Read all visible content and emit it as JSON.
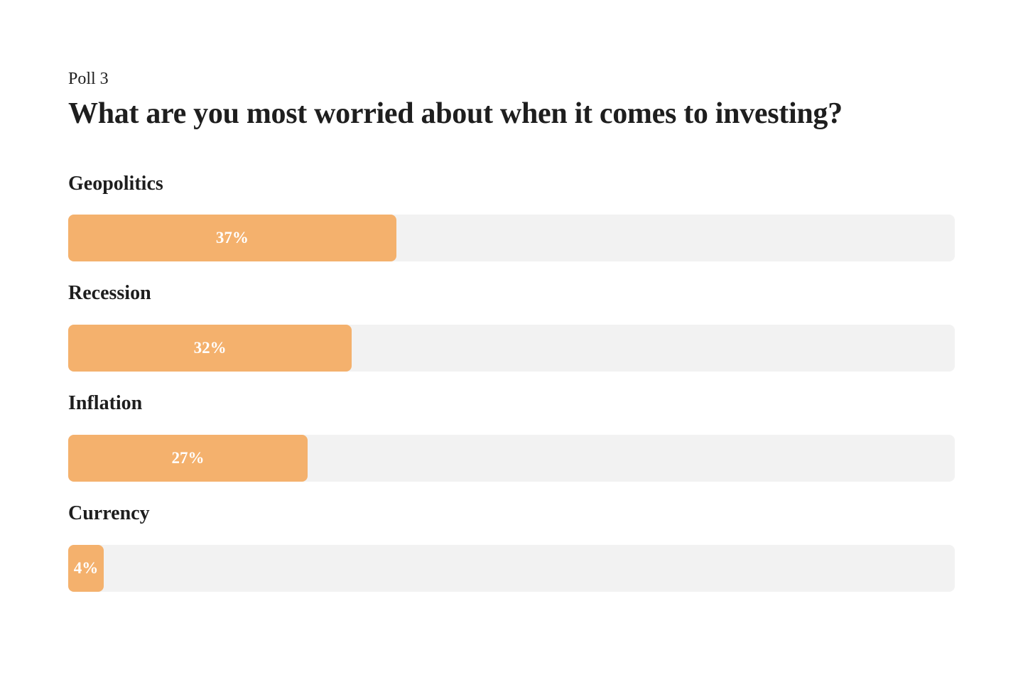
{
  "poll": {
    "eyebrow": "Poll 3",
    "title": "What are you most worried about when it comes to investing?"
  },
  "chart_data": {
    "type": "bar",
    "orientation": "horizontal",
    "title": "What are you most worried about when it comes to investing?",
    "subtitle": "Poll 3",
    "categories": [
      "Geopolitics",
      "Recession",
      "Inflation",
      "Currency"
    ],
    "values": [
      37,
      32,
      27,
      4
    ],
    "value_labels": [
      "37%",
      "32%",
      "27%",
      "4%"
    ],
    "xlim": [
      0,
      100
    ],
    "grid": false,
    "legend": false,
    "bar_color": "#f4b16d",
    "track_color": "#f2f2f2",
    "value_label_color": "#ffffff",
    "text_color": "#1e1e1e",
    "background_color": "#ffffff"
  }
}
